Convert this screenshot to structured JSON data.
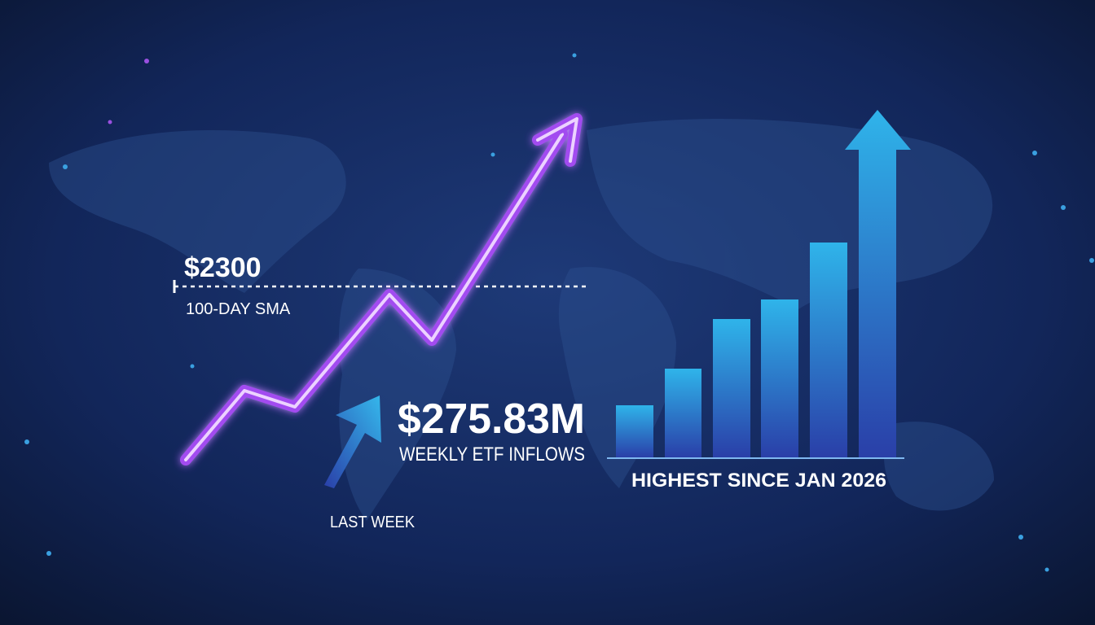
{
  "labels": {
    "sma_price": "$2300",
    "sma_label": "100-DAY SMA",
    "inflow_value": "$275.83M",
    "inflow_label": "WEEKLY ETF INFLOWS",
    "period": "LAST WEEK",
    "highest": "HIGHEST SINCE JAN 2026"
  }
}
